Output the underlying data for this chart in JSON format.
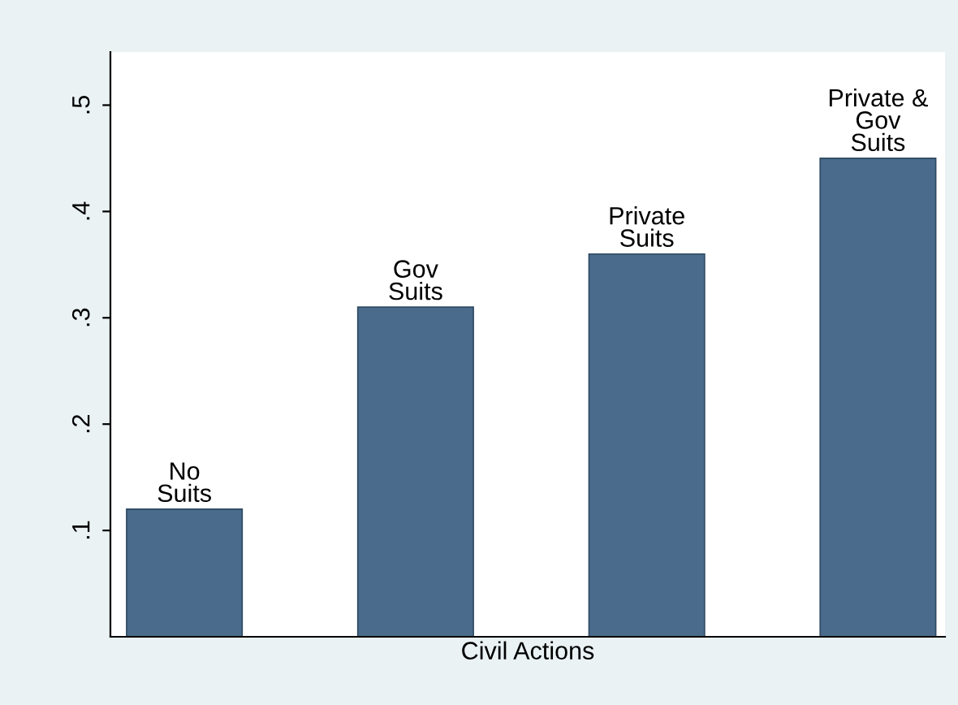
{
  "chart_data": {
    "type": "bar",
    "xlabel": "Civil Actions",
    "categories": [
      "No\nSuits",
      "Gov\nSuits",
      "Private\nSuits",
      "Private &\nGov\nSuits"
    ],
    "values": [
      0.12,
      0.31,
      0.36,
      0.45
    ],
    "color": "#4a6b8b",
    "ylim": [
      0,
      0.55
    ],
    "yticks": [
      {
        "value": 0.1,
        "label": ".1"
      },
      {
        "value": 0.2,
        "label": ".2"
      },
      {
        "value": 0.3,
        "label": ".3"
      },
      {
        "value": 0.4,
        "label": ".4"
      },
      {
        "value": 0.5,
        "label": ".5"
      }
    ],
    "grid": false,
    "legend": false
  }
}
